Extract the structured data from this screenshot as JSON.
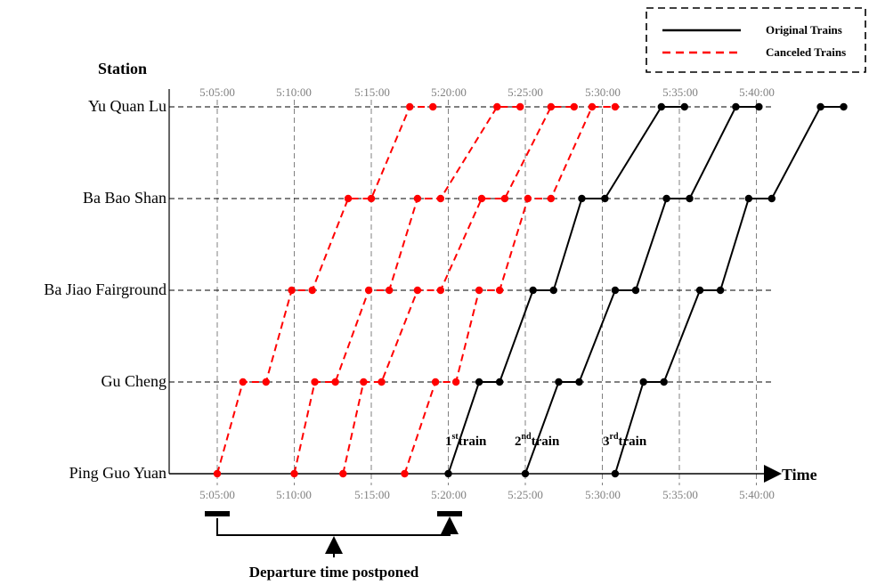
{
  "legend": {
    "original": "Original Trains",
    "canceled": "Canceled Trains"
  },
  "axes": {
    "y_title": "Station",
    "x_title": "Time"
  },
  "stations": [
    "Yu Quan Lu",
    "Ba Bao Shan",
    "Ba Jiao Fairground",
    "Gu Cheng",
    "Ping Guo Yuan"
  ],
  "time_ticks_top": [
    "5:05:00",
    "5:10:00",
    "5:15:00",
    "5:20:00",
    "5:25:00",
    "5:30:00",
    "5:35:00",
    "5:40:00"
  ],
  "time_ticks_bottom": [
    "5:05:00",
    "5:10:00",
    "5:15:00",
    "5:20:00",
    "5:25:00",
    "5:30:00",
    "5:35:00",
    "5:40:00"
  ],
  "train_labels": [
    {
      "num": "1",
      "sup": "st",
      "word": "train"
    },
    {
      "num": "2",
      "sup": "nd",
      "word": "train"
    },
    {
      "num": "3",
      "sup": "rd",
      "word": "train"
    }
  ],
  "note": "Departure time postponed",
  "colors": {
    "original": "#000000",
    "canceled": "#ff0000",
    "grid": "#808080"
  },
  "chart_data": {
    "type": "line",
    "ylabel": "Station",
    "xlabel": "Time",
    "categories": [
      "Ping Guo Yuan",
      "Gu Cheng",
      "Ba Jiao Fairground",
      "Ba Bao Shan",
      "Yu Quan Lu"
    ],
    "series": [
      {
        "name": "Canceled Trains",
        "trains": [
          {
            "arr": [
              "5:05:00",
              "5:06:40",
              "5:09:50",
              "5:13:30",
              "5:17:30"
            ],
            "dep": [
              "5:05:00",
              "5:08:10",
              "5:11:10",
              "5:15:00",
              "5:19:00"
            ]
          },
          {
            "arr": [
              "5:10:00",
              "5:11:20",
              "5:14:50",
              "5:18:00",
              "5:23:10"
            ],
            "dep": [
              "5:10:00",
              "5:12:40",
              "5:16:10",
              "5:19:30",
              "5:24:40"
            ]
          },
          {
            "arr": [
              "5:13:10",
              "5:14:30",
              "5:18:00",
              "5:22:10",
              "5:26:40"
            ],
            "dep": [
              "5:13:10",
              "5:15:40",
              "5:19:30",
              "5:23:40",
              "5:28:10"
            ]
          },
          {
            "arr": [
              "5:17:10",
              "5:19:10",
              "5:22:00",
              "5:25:10",
              "5:29:20"
            ],
            "dep": [
              "5:17:10",
              "5:20:30",
              "5:23:20",
              "5:26:40",
              "5:30:50"
            ]
          }
        ]
      },
      {
        "name": "Original Trains",
        "trains": [
          {
            "arr": [
              "5:20:00",
              "5:22:00",
              "5:25:30",
              "5:28:40",
              "5:33:50"
            ],
            "dep": [
              "5:20:00",
              "5:23:20",
              "5:26:50",
              "5:30:10",
              "5:35:20"
            ]
          },
          {
            "arr": [
              "5:25:00",
              "5:27:10",
              "5:30:50",
              "5:34:10",
              "5:38:40"
            ],
            "dep": [
              "5:25:00",
              "5:28:30",
              "5:32:10",
              "5:35:40",
              "5:40:10"
            ]
          },
          {
            "arr": [
              "5:30:50",
              "5:32:40",
              "5:36:20",
              "5:39:30",
              "5:44:10"
            ],
            "dep": [
              "5:30:50",
              "5:34:00",
              "5:37:40",
              "5:41:00",
              "5:45:40"
            ]
          }
        ]
      }
    ]
  }
}
